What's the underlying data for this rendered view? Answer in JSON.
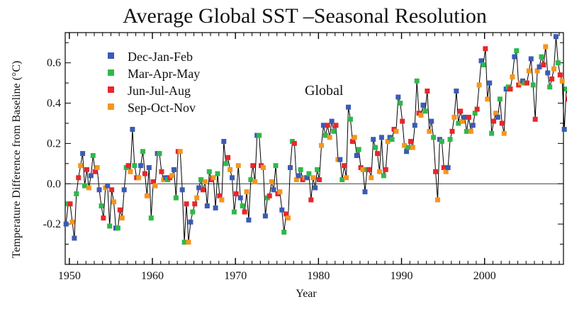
{
  "chart_data": {
    "type": "line",
    "title": "Average Global SST –Seasonal Resolution",
    "xlabel": "Year",
    "ylabel": "Temperature Difference from Baseline (°C)",
    "annotation": "Global",
    "xlim": [
      1949.5,
      2009.5
    ],
    "ylim": [
      -0.4,
      0.75
    ],
    "x_ticks": [
      1950,
      1960,
      1970,
      1980,
      1990,
      2000
    ],
    "y_ticks": [
      -0.2,
      0.0,
      0.2,
      0.4,
      0.6
    ],
    "zero_line": true,
    "legend_position": "top-left",
    "season_colors": {
      "Dec-Jan-Feb": "#3b5bb5",
      "Mar-Apr-May": "#2fb84a",
      "Jun-Jul-Aug": "#e8262b",
      "Sep-Oct-Nov": "#f5961d"
    },
    "series": [
      {
        "name": "Dec-Jan-Feb",
        "color": "#3b5bb5"
      },
      {
        "name": "Mar-Apr-May",
        "color": "#2fb84a"
      },
      {
        "name": "Jun-Jul-Aug",
        "color": "#e8262b"
      },
      {
        "name": "Sep-Oct-Nov",
        "color": "#f5961d"
      }
    ],
    "values": [
      -0.2,
      -0.1,
      -0.1,
      -0.19,
      -0.27,
      -0.05,
      0.03,
      0.09,
      0.15,
      -0.01,
      0.07,
      -0.02,
      0.04,
      0.14,
      0.06,
      0.08,
      -0.03,
      -0.11,
      -0.17,
      -0.02,
      -0.01,
      -0.21,
      -0.03,
      -0.09,
      -0.22,
      -0.22,
      -0.13,
      -0.17,
      -0.03,
      0.08,
      0.09,
      0.06,
      0.27,
      0.09,
      0.03,
      0.03,
      0.09,
      0.16,
      0.05,
      -0.06,
      0.08,
      -0.17,
      0.01,
      -0.01,
      0.15,
      0.15,
      0.06,
      0.02,
      0.03,
      0.02,
      0.03,
      0.04,
      0.07,
      -0.07,
      0.16,
      0.16,
      -0.03,
      -0.29,
      -0.1,
      -0.29,
      -0.19,
      -0.14,
      -0.1,
      -0.07,
      -0.02,
      0.02,
      -0.03,
      0.01,
      -0.11,
      0.06,
      0.02,
      0.03,
      -0.12,
      0.05,
      -0.06,
      -0.08,
      0.21,
      0.1,
      0.13,
      0.07,
      0.03,
      -0.14,
      -0.05,
      0.09,
      -0.07,
      -0.11,
      -0.14,
      -0.04,
      -0.18,
      0.02,
      0.09,
      0.01,
      0.24,
      0.24,
      0.09,
      0.08,
      -0.16,
      -0.07,
      -0.06,
      0.01,
      -0.03,
      0.09,
      -0.05,
      -0.04,
      -0.13,
      -0.24,
      -0.15,
      -0.17,
      0.08,
      0.21,
      0.2,
      0.02,
      0.04,
      0.07,
      0.02,
      0.03,
      0.03,
      0.05,
      -0.08,
      0.03,
      -0.02,
      0.07,
      0.02,
      0.19,
      0.29,
      0.24,
      0.29,
      0.23,
      0.31,
      0.26,
      0.29,
      0.12,
      0.12,
      0.02,
      0.09,
      0.03,
      0.38,
      0.32,
      0.21,
      0.23,
      0.14,
      0.17,
      0.08,
      0.07,
      -0.04,
      0.07,
      0.07,
      0.03,
      0.22,
      0.18,
      0.15,
      0.06,
      0.23,
      0.04,
      0.07,
      0.21,
      0.23,
      0.22,
      0.27,
      0.26,
      0.43,
      0.4,
      0.31,
      0.19,
      0.16,
      0.18,
      0.21,
      0.18,
      0.29,
      0.51,
      0.35,
      0.34,
      0.39,
      0.36,
      0.46,
      0.26,
      0.31,
      0.23,
      0.06,
      -0.08,
      0.22,
      0.21,
      0.08,
      0.06,
      0.08,
      0.22,
      0.26,
      0.33,
      0.46,
      0.3,
      0.36,
      0.31,
      0.33,
      0.26,
      0.33,
      0.26,
      0.29,
      0.35,
      0.37,
      0.49,
      0.61,
      0.59,
      0.67,
      0.42,
      0.5,
      0.25,
      0.31,
      0.35,
      0.33,
      0.42,
      0.3,
      0.25,
      0.47,
      0.48,
      0.47,
      0.53,
      0.63,
      0.66,
      0.49,
      0.5,
      0.51,
      0.5,
      0.5,
      0.56,
      0.62,
      0.49,
      0.32,
      0.56,
      0.58,
      0.63,
      0.59,
      0.68,
      0.55,
      0.48,
      0.52,
      0.57,
      0.73,
      0.6,
      0.54,
      0.51,
      0.27,
      0.47,
      0.42,
      0.56
    ],
    "start_year": 1949.6,
    "step": 0.25
  }
}
